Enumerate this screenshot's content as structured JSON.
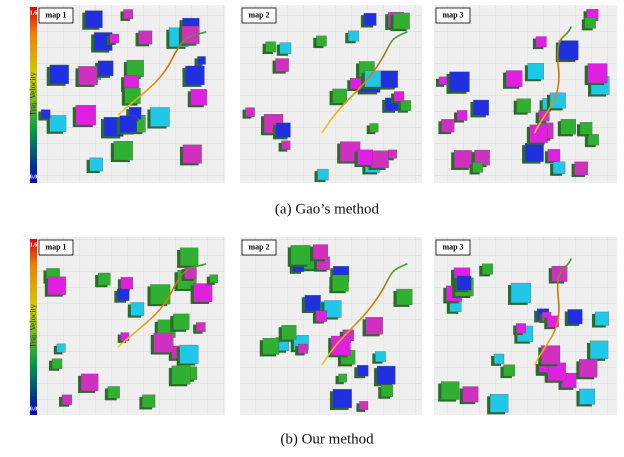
{
  "rows": [
    {
      "caption": "(a) Gao’s method",
      "colorbar": {
        "max": "1.6",
        "min": "0.0",
        "label": "Traj. Velocity"
      },
      "panels": [
        {
          "label": "map 1"
        },
        {
          "label": "map 2"
        },
        {
          "label": "map 3"
        }
      ]
    },
    {
      "caption": "(b) Our method",
      "colorbar": {
        "max": "1.6",
        "min": "0.0",
        "label": "Traj. Velocity"
      },
      "panels": [
        {
          "label": "map 1"
        },
        {
          "label": "map 2"
        },
        {
          "label": "map 3"
        }
      ]
    }
  ]
}
